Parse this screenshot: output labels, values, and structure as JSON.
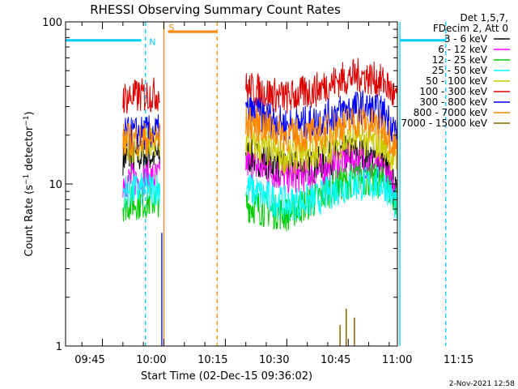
{
  "chart_data": {
    "type": "line",
    "title": "RHESSI Observing Summary Count Rates",
    "xlabel": "Start Time (02-Dec-15 09:36:02)",
    "ylabel": "Count Rate (s⁻¹ detector⁻¹)",
    "ylabel_parts": {
      "main": "Count Rate (s",
      "sup1": "−1",
      "mid": " detector",
      "sup2": "−1",
      "end": ")"
    },
    "y_scale": "log",
    "ylim": [
      1,
      100
    ],
    "y_ticks": [
      {
        "value": 1,
        "label": "1"
      },
      {
        "value": 10,
        "label": "10"
      },
      {
        "value": 100,
        "label": "100"
      }
    ],
    "xlim_minutes": [
      36.0,
      117.0
    ],
    "x_ticks": [
      {
        "minute": 45,
        "label": "09:45"
      },
      {
        "minute": 60,
        "label": "10:00"
      },
      {
        "minute": 75,
        "label": "10:15"
      },
      {
        "minute": 90,
        "label": "10:30"
      },
      {
        "minute": 105,
        "label": "10:45"
      },
      {
        "minute": 120,
        "label": "11:00"
      },
      {
        "minute": 135,
        "label": "11:15"
      }
    ],
    "x_minor_step_minutes": 5,
    "legend": {
      "placement": "right",
      "header": [
        "Det 1,5,7,",
        "FDecim 2, Att 0"
      ],
      "entries": [
        {
          "label": "3 - 6 keV",
          "color": "#000000"
        },
        {
          "label": "6 - 12 keV",
          "color": "#ff00ff"
        },
        {
          "label": "12 - 25 keV",
          "color": "#00cc00"
        },
        {
          "label": "25 - 50 keV",
          "color": "#00ffff"
        },
        {
          "label": "50 - 100 keV",
          "color": "#cccc00"
        },
        {
          "label": "100 - 300 keV",
          "color": "#dd0000"
        },
        {
          "label": "300 - 800 keV",
          "color": "#0000ff"
        },
        {
          "label": "800 - 7000 keV",
          "color": "#ff8800"
        },
        {
          "label": "7000 - 15000 keV",
          "color": "#886600"
        }
      ]
    },
    "segments": [
      [
        50,
        59
      ],
      [
        80,
        117
      ]
    ],
    "series": [
      {
        "name": "3 - 6 keV",
        "color": "#000000",
        "profile": [
          [
            50,
            14.5
          ],
          [
            59,
            15
          ],
          [
            80,
            15
          ],
          [
            84,
            14
          ],
          [
            90,
            12.5
          ],
          [
            97,
            13
          ],
          [
            103,
            15.5
          ],
          [
            108,
            15.5
          ],
          [
            114,
            13
          ],
          [
            117,
            8
          ]
        ]
      },
      {
        "name": "6 - 12 keV",
        "color": "#ff00ff",
        "profile": [
          [
            50,
            10.5
          ],
          [
            59,
            11
          ],
          [
            80,
            13.5
          ],
          [
            84,
            12.5
          ],
          [
            90,
            11
          ],
          [
            97,
            11.5
          ],
          [
            103,
            14
          ],
          [
            108,
            14
          ],
          [
            114,
            12
          ],
          [
            117,
            8
          ]
        ]
      },
      {
        "name": "12 - 25 keV",
        "color": "#00cc00",
        "profile": [
          [
            50,
            7.5
          ],
          [
            59,
            8
          ],
          [
            80,
            7.5
          ],
          [
            84,
            7
          ],
          [
            90,
            6.5
          ],
          [
            97,
            8
          ],
          [
            103,
            10
          ],
          [
            108,
            11
          ],
          [
            114,
            10
          ],
          [
            117,
            7.5
          ]
        ]
      },
      {
        "name": "25 - 50 keV",
        "color": "#00ffff",
        "profile": [
          [
            50,
            9
          ],
          [
            59,
            9.5
          ],
          [
            80,
            9.5
          ],
          [
            84,
            8.5
          ],
          [
            90,
            7.5
          ],
          [
            97,
            8
          ],
          [
            103,
            9.5
          ],
          [
            108,
            10
          ],
          [
            114,
            10
          ],
          [
            117,
            7
          ]
        ]
      },
      {
        "name": "50 - 100 keV",
        "color": "#cccc00",
        "profile": [
          [
            50,
            17
          ],
          [
            59,
            17.5
          ],
          [
            80,
            18
          ],
          [
            84,
            16.5
          ],
          [
            90,
            14.5
          ],
          [
            97,
            15.5
          ],
          [
            103,
            18
          ],
          [
            108,
            19
          ],
          [
            114,
            17
          ],
          [
            117,
            13
          ]
        ]
      },
      {
        "name": "100 - 300 keV",
        "color": "#dd0000",
        "profile": [
          [
            50,
            34
          ],
          [
            59,
            36
          ],
          [
            80,
            39
          ],
          [
            84,
            37
          ],
          [
            90,
            34
          ],
          [
            97,
            38
          ],
          [
            103,
            44
          ],
          [
            108,
            47
          ],
          [
            114,
            42
          ],
          [
            117,
            32
          ]
        ]
      },
      {
        "name": "300 - 800 keV",
        "color": "#0000ff",
        "profile": [
          [
            50,
            20
          ],
          [
            59,
            21
          ],
          [
            80,
            28
          ],
          [
            84,
            26.5
          ],
          [
            90,
            23
          ],
          [
            97,
            24
          ],
          [
            103,
            28
          ],
          [
            108,
            30
          ],
          [
            114,
            27
          ],
          [
            117,
            20
          ]
        ]
      },
      {
        "name": "800 - 7000 keV",
        "color": "#ff8800",
        "profile": [
          [
            50,
            18.5
          ],
          [
            59,
            19
          ],
          [
            80,
            24
          ],
          [
            84,
            23
          ],
          [
            90,
            20
          ],
          [
            97,
            20
          ],
          [
            103,
            23
          ],
          [
            108,
            24.5
          ],
          [
            114,
            22
          ],
          [
            117,
            16
          ]
        ]
      },
      {
        "name": "7000 - 15000 keV",
        "color": "#886600",
        "profile": [
          [
            50,
            1
          ],
          [
            59,
            1
          ],
          [
            80,
            1
          ],
          [
            100,
            1
          ],
          [
            102,
            1
          ],
          [
            104,
            1
          ],
          [
            106,
            1
          ],
          [
            108,
            1
          ],
          [
            117,
            1
          ]
        ],
        "spikes": [
          [
            103,
            1.35
          ],
          [
            104.5,
            1.7
          ],
          [
            106.5,
            1.5
          ]
        ]
      }
    ],
    "annotations": {
      "flags": [
        {
          "label": "N",
          "color": "#00ccff",
          "minute": 56,
          "lines": [
            {
              "minute": 55.5,
              "style": "dashed"
            },
            {
              "minute": 117.6,
              "style": "solid"
            },
            {
              "minute": 128.8,
              "style": "dashed"
            }
          ],
          "bars": [
            [
              36,
              54.5
            ],
            [
              117.6,
              128.8
            ]
          ],
          "bar_level": 77
        },
        {
          "label": "S",
          "color": "#ff8800",
          "minute": 60,
          "lines": [
            {
              "minute": 60.0,
              "style": "solid"
            },
            {
              "minute": 73.0,
              "style": "dashed"
            }
          ],
          "bars": [
            [
              61,
              73
            ]
          ],
          "bar_level": 87
        }
      ],
      "other_lines": [
        {
          "minute": 59.5,
          "color": "#0000ff",
          "style": "solid"
        }
      ]
    }
  },
  "timestamp": "2-Nov-2021 12:58"
}
